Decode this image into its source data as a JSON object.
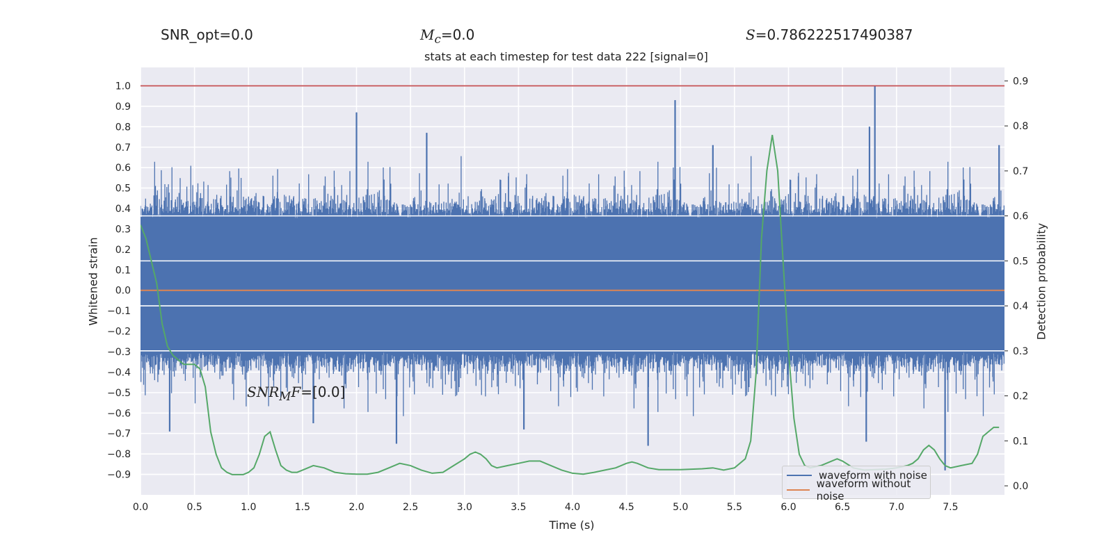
{
  "header": {
    "snr_opt": "SNR_opt=0.0",
    "mc_sym": "M",
    "mc_sub": "c",
    "mc_value": "=0.0",
    "s_sym": "S",
    "s_value": "=0.786222517490387"
  },
  "annotation": {
    "sym": "SNR",
    "sub": "M",
    "sym2": "F",
    "value": "=[0.0]"
  },
  "colors": {
    "noise": "#4c72b0",
    "clean": "#dd8452",
    "prob": "#55a868",
    "threshold": "#c44e52",
    "axes_bg": "#eaeaf2",
    "grid": "#ffffff"
  },
  "chart_data": {
    "type": "line",
    "title": "stats at each timestep for test data 222 [signal=0]",
    "xlabel": "Time (s)",
    "ylabel_left": "Whitened strain",
    "ylabel_right": "Detection probability",
    "xlim": [
      0.0,
      8.0
    ],
    "ylim_left": [
      -1.0,
      1.09
    ],
    "ylim_right": [
      -0.02,
      0.93
    ],
    "x_ticks": [
      0.0,
      0.5,
      1.0,
      1.5,
      2.0,
      2.5,
      3.0,
      3.5,
      4.0,
      4.5,
      5.0,
      5.5,
      6.0,
      6.5,
      7.0,
      7.5
    ],
    "y_ticks_left": [
      -0.9,
      -0.8,
      -0.7,
      -0.6,
      -0.5,
      -0.4,
      -0.3,
      -0.2,
      -0.1,
      0.0,
      0.1,
      0.2,
      0.3,
      0.4,
      0.5,
      0.6,
      0.7,
      0.8,
      0.9,
      1.0
    ],
    "y_ticks_right": [
      0.0,
      0.1,
      0.2,
      0.3,
      0.4,
      0.5,
      0.6,
      0.7,
      0.8,
      0.9
    ],
    "grid": true,
    "legend_position": "lower-right",
    "series": [
      {
        "name": "waveform with noise",
        "axis": "left",
        "style": "dense noise band",
        "envelope_typical": [
          -0.3,
          0.35
        ],
        "peaks": [
          [
            2.0,
            0.87
          ],
          [
            2.65,
            0.77
          ],
          [
            4.95,
            0.93
          ],
          [
            5.3,
            0.71
          ],
          [
            6.75,
            0.8
          ],
          [
            6.8,
            1.0
          ],
          [
            7.95,
            0.71
          ]
        ],
        "troughs": [
          [
            0.27,
            -0.69
          ],
          [
            1.6,
            -0.65
          ],
          [
            2.37,
            -0.75
          ],
          [
            3.55,
            -0.68
          ],
          [
            4.7,
            -0.76
          ],
          [
            6.72,
            -0.74
          ],
          [
            7.45,
            -0.88
          ]
        ]
      },
      {
        "name": "waveform without noise",
        "axis": "left",
        "x": [
          0.0,
          8.0
        ],
        "y": [
          0.0,
          0.0
        ]
      },
      {
        "name": "threshold",
        "axis": "left",
        "x": [
          0.0,
          8.0
        ],
        "y": [
          1.0,
          1.0
        ]
      },
      {
        "name": "detection probability",
        "axis": "right",
        "x": [
          0.0,
          0.05,
          0.1,
          0.15,
          0.2,
          0.25,
          0.3,
          0.35,
          0.4,
          0.45,
          0.5,
          0.55,
          0.6,
          0.65,
          0.7,
          0.75,
          0.8,
          0.85,
          0.9,
          0.95,
          1.0,
          1.05,
          1.1,
          1.15,
          1.2,
          1.25,
          1.3,
          1.35,
          1.4,
          1.45,
          1.5,
          1.6,
          1.7,
          1.8,
          1.9,
          2.0,
          2.1,
          2.2,
          2.3,
          2.4,
          2.5,
          2.6,
          2.7,
          2.8,
          2.9,
          3.0,
          3.05,
          3.1,
          3.15,
          3.2,
          3.25,
          3.3,
          3.4,
          3.5,
          3.6,
          3.7,
          3.8,
          3.9,
          4.0,
          4.1,
          4.2,
          4.3,
          4.4,
          4.5,
          4.55,
          4.6,
          4.7,
          4.8,
          4.9,
          5.0,
          5.1,
          5.2,
          5.3,
          5.4,
          5.5,
          5.6,
          5.65,
          5.7,
          5.75,
          5.8,
          5.85,
          5.9,
          5.95,
          6.0,
          6.05,
          6.1,
          6.15,
          6.2,
          6.3,
          6.4,
          6.45,
          6.5,
          6.6,
          6.7,
          6.8,
          6.9,
          7.0,
          7.1,
          7.15,
          7.2,
          7.25,
          7.3,
          7.35,
          7.4,
          7.45,
          7.5,
          7.6,
          7.7,
          7.75,
          7.8,
          7.85,
          7.9,
          7.95
        ],
        "y": [
          0.58,
          0.55,
          0.5,
          0.45,
          0.36,
          0.31,
          0.29,
          0.28,
          0.27,
          0.27,
          0.27,
          0.26,
          0.22,
          0.12,
          0.07,
          0.04,
          0.03,
          0.025,
          0.025,
          0.025,
          0.03,
          0.04,
          0.07,
          0.11,
          0.12,
          0.08,
          0.045,
          0.035,
          0.03,
          0.03,
          0.035,
          0.045,
          0.04,
          0.03,
          0.027,
          0.026,
          0.026,
          0.03,
          0.04,
          0.05,
          0.045,
          0.035,
          0.028,
          0.03,
          0.045,
          0.06,
          0.07,
          0.075,
          0.07,
          0.06,
          0.045,
          0.04,
          0.045,
          0.05,
          0.055,
          0.055,
          0.045,
          0.035,
          0.028,
          0.026,
          0.03,
          0.035,
          0.04,
          0.05,
          0.053,
          0.05,
          0.04,
          0.036,
          0.036,
          0.036,
          0.037,
          0.038,
          0.04,
          0.035,
          0.04,
          0.06,
          0.1,
          0.25,
          0.55,
          0.7,
          0.78,
          0.7,
          0.5,
          0.3,
          0.15,
          0.07,
          0.045,
          0.04,
          0.045,
          0.055,
          0.06,
          0.055,
          0.04,
          0.035,
          0.036,
          0.037,
          0.04,
          0.045,
          0.05,
          0.06,
          0.08,
          0.09,
          0.08,
          0.06,
          0.045,
          0.04,
          0.045,
          0.05,
          0.07,
          0.11,
          0.12,
          0.13,
          0.13
        ]
      }
    ]
  }
}
